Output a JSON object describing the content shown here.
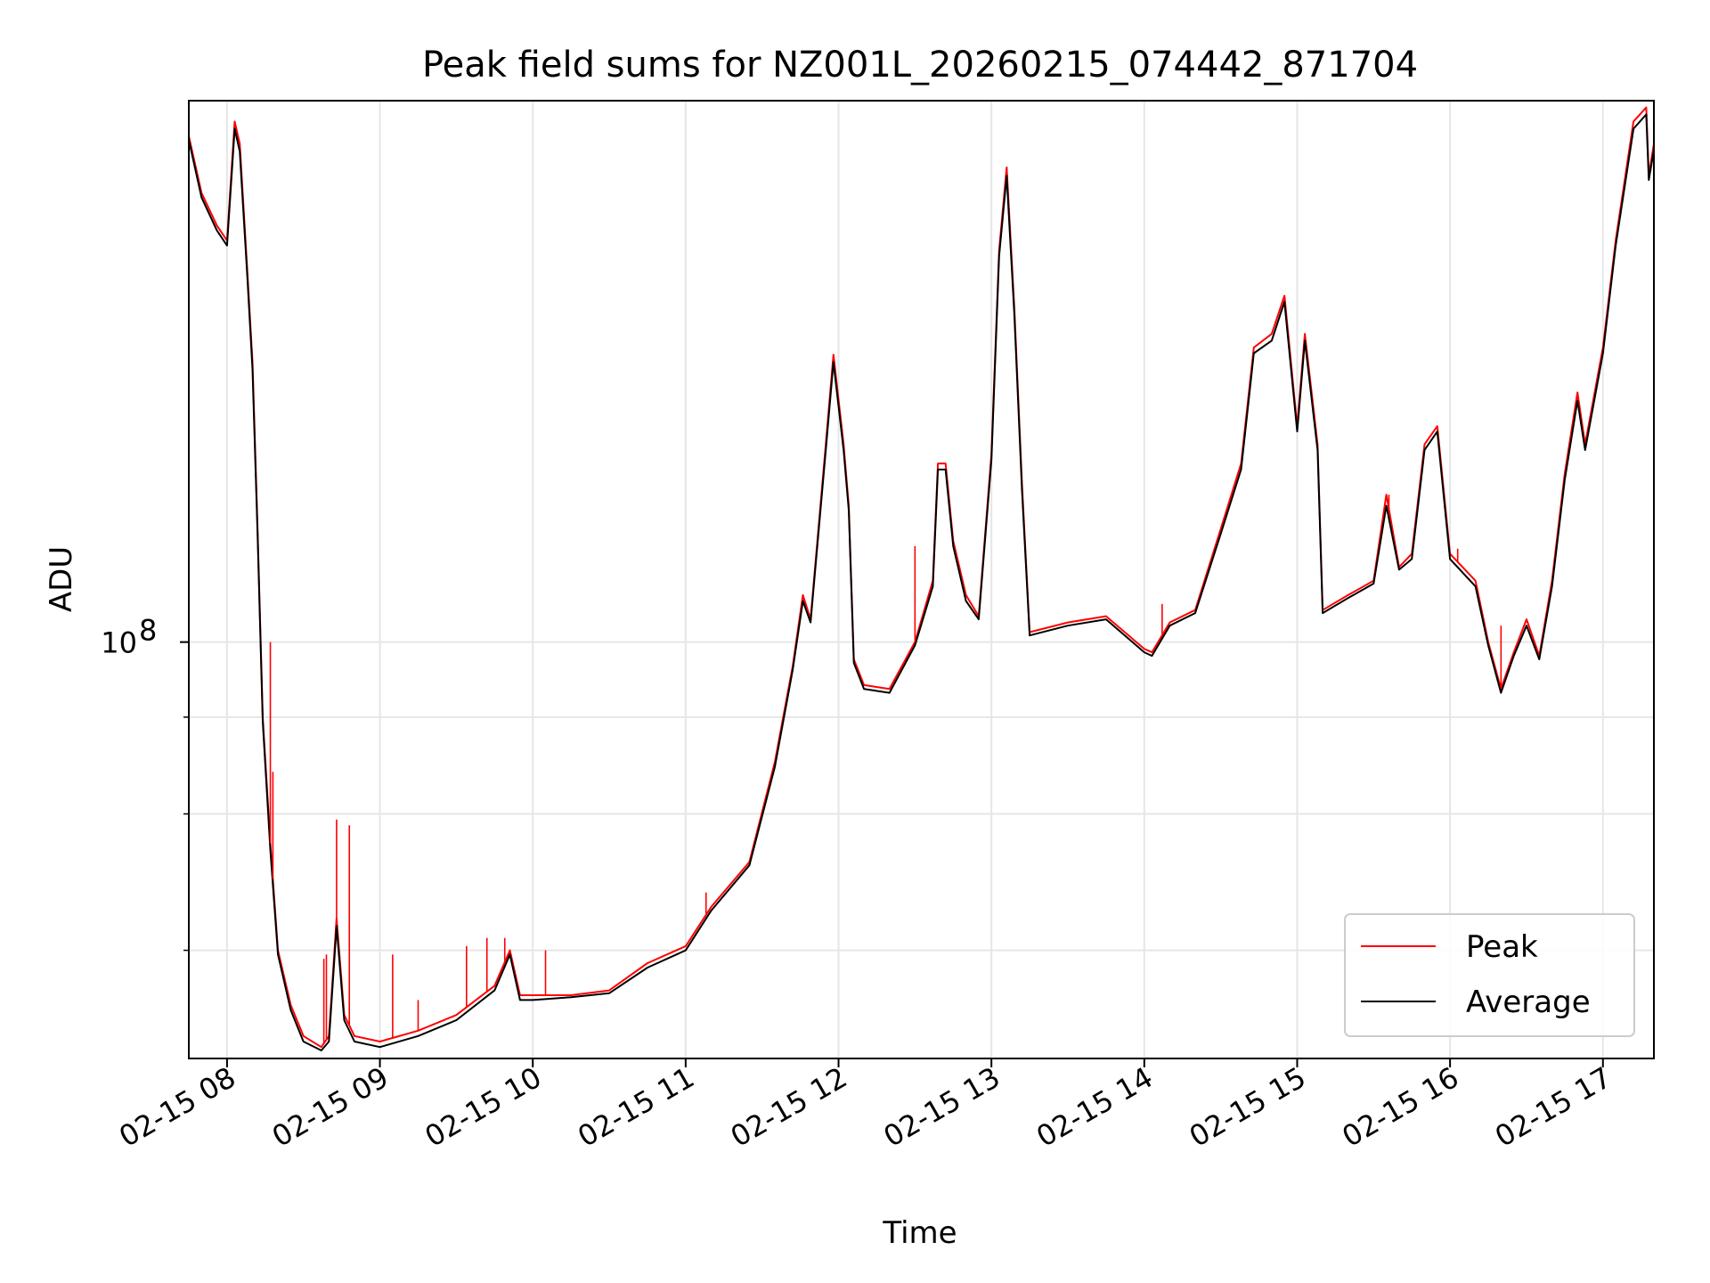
{
  "chart_data": {
    "type": "line",
    "title": "Peak field sums for NZ001L_20260215_074442_871704",
    "xlabel": "Time",
    "ylabel": "ADU",
    "y_scale": "log",
    "grid": true,
    "legend_position": "lower-right",
    "xlim": [
      "2026-02-15 07:45",
      "2026-02-15 17:20"
    ],
    "ylim": [
      29000000,
      500000000
    ],
    "x_ticks": [
      "02-15 08",
      "02-15 09",
      "02-15 10",
      "02-15 11",
      "02-15 12",
      "02-15 13",
      "02-15 14",
      "02-15 15",
      "02-15 16",
      "02-15 17"
    ],
    "y_tick_labels": [
      {
        "value": 100000000,
        "base": "10",
        "exp": "8"
      }
    ],
    "y_minor_ticks": [
      40000000,
      60000000,
      80000000
    ],
    "series": [
      {
        "name": "Peak",
        "color": "#ff0000",
        "points": [
          [
            "2026-02-15 07:45",
            450000000
          ],
          [
            "2026-02-15 07:50",
            380000000
          ],
          [
            "2026-02-15 07:56",
            345000000
          ],
          [
            "2026-02-15 08:00",
            330000000
          ],
          [
            "2026-02-15 08:03",
            470000000
          ],
          [
            "2026-02-15 08:05",
            440000000
          ],
          [
            "2026-02-15 08:08",
            300000000
          ],
          [
            "2026-02-15 08:10",
            230000000
          ],
          [
            "2026-02-15 08:12",
            140000000
          ],
          [
            "2026-02-15 08:14",
            80000000
          ],
          [
            "2026-02-15 08:17",
            55000000
          ],
          [
            "2026-02-15 08:20",
            40000000
          ],
          [
            "2026-02-15 08:25",
            34000000
          ],
          [
            "2026-02-15 08:30",
            31000000
          ],
          [
            "2026-02-15 08:37",
            30000000
          ],
          [
            "2026-02-15 08:40",
            31000000
          ],
          [
            "2026-02-15 08:43",
            44000000
          ],
          [
            "2026-02-15 08:46",
            33000000
          ],
          [
            "2026-02-15 08:50",
            31000000
          ],
          [
            "2026-02-15 09:00",
            30500000
          ],
          [
            "2026-02-15 09:15",
            31500000
          ],
          [
            "2026-02-15 09:30",
            33000000
          ],
          [
            "2026-02-15 09:45",
            36000000
          ],
          [
            "2026-02-15 09:51",
            40000000
          ],
          [
            "2026-02-15 09:55",
            35000000
          ],
          [
            "2026-02-15 10:00",
            35000000
          ],
          [
            "2026-02-15 10:15",
            35000000
          ],
          [
            "2026-02-15 10:30",
            35500000
          ],
          [
            "2026-02-15 10:45",
            38500000
          ],
          [
            "2026-02-15 11:00",
            40500000
          ],
          [
            "2026-02-15 11:10",
            45500000
          ],
          [
            "2026-02-15 11:25",
            52000000
          ],
          [
            "2026-02-15 11:35",
            70000000
          ],
          [
            "2026-02-15 11:42",
            93000000
          ],
          [
            "2026-02-15 11:46",
            115000000
          ],
          [
            "2026-02-15 11:49",
            107000000
          ],
          [
            "2026-02-15 11:55",
            180000000
          ],
          [
            "2026-02-15 11:58",
            235000000
          ],
          [
            "2026-02-15 12:02",
            180000000
          ],
          [
            "2026-02-15 12:04",
            150000000
          ],
          [
            "2026-02-15 12:06",
            95000000
          ],
          [
            "2026-02-15 12:10",
            88000000
          ],
          [
            "2026-02-15 12:20",
            87000000
          ],
          [
            "2026-02-15 12:30",
            100000000
          ],
          [
            "2026-02-15 12:37",
            120000000
          ],
          [
            "2026-02-15 12:39",
            170000000
          ],
          [
            "2026-02-15 12:42",
            170000000
          ],
          [
            "2026-02-15 12:45",
            135000000
          ],
          [
            "2026-02-15 12:50",
            115000000
          ],
          [
            "2026-02-15 12:55",
            108000000
          ],
          [
            "2026-02-15 13:00",
            175000000
          ],
          [
            "2026-02-15 13:03",
            320000000
          ],
          [
            "2026-02-15 13:06",
            410000000
          ],
          [
            "2026-02-15 13:09",
            270000000
          ],
          [
            "2026-02-15 13:12",
            160000000
          ],
          [
            "2026-02-15 13:15",
            103000000
          ],
          [
            "2026-02-15 13:30",
            106000000
          ],
          [
            "2026-02-15 13:45",
            108000000
          ],
          [
            "2026-02-15 14:00",
            98000000
          ],
          [
            "2026-02-15 14:03",
            97000000
          ],
          [
            "2026-02-15 14:10",
            106000000
          ],
          [
            "2026-02-15 14:20",
            110000000
          ],
          [
            "2026-02-15 14:30",
            140000000
          ],
          [
            "2026-02-15 14:38",
            170000000
          ],
          [
            "2026-02-15 14:43",
            240000000
          ],
          [
            "2026-02-15 14:50",
            250000000
          ],
          [
            "2026-02-15 14:55",
            280000000
          ],
          [
            "2026-02-15 15:00",
            190000000
          ],
          [
            "2026-02-15 15:03",
            250000000
          ],
          [
            "2026-02-15 15:08",
            180000000
          ],
          [
            "2026-02-15 15:10",
            110000000
          ],
          [
            "2026-02-15 15:20",
            115000000
          ],
          [
            "2026-02-15 15:30",
            120000000
          ],
          [
            "2026-02-15 15:35",
            155000000
          ],
          [
            "2026-02-15 15:40",
            125000000
          ],
          [
            "2026-02-15 15:45",
            130000000
          ],
          [
            "2026-02-15 15:50",
            180000000
          ],
          [
            "2026-02-15 15:55",
            190000000
          ],
          [
            "2026-02-15 16:00",
            130000000
          ],
          [
            "2026-02-15 16:10",
            120000000
          ],
          [
            "2026-02-15 16:15",
            100000000
          ],
          [
            "2026-02-15 16:20",
            87000000
          ],
          [
            "2026-02-15 16:25",
            97000000
          ],
          [
            "2026-02-15 16:30",
            107000000
          ],
          [
            "2026-02-15 16:35",
            96000000
          ],
          [
            "2026-02-15 16:40",
            120000000
          ],
          [
            "2026-02-15 16:45",
            165000000
          ],
          [
            "2026-02-15 16:50",
            210000000
          ],
          [
            "2026-02-15 16:53",
            180000000
          ],
          [
            "2026-02-15 17:00",
            240000000
          ],
          [
            "2026-02-15 17:05",
            330000000
          ],
          [
            "2026-02-15 17:12",
            470000000
          ],
          [
            "2026-02-15 17:17",
            490000000
          ],
          [
            "2026-02-15 17:18",
            400000000
          ],
          [
            "2026-02-15 17:20",
            440000000
          ]
        ]
      },
      {
        "name": "Average",
        "color": "#000000",
        "points": [
          [
            "2026-02-15 07:45",
            445000000
          ],
          [
            "2026-02-15 07:50",
            375000000
          ],
          [
            "2026-02-15 07:56",
            340000000
          ],
          [
            "2026-02-15 08:00",
            325000000
          ],
          [
            "2026-02-15 08:03",
            460000000
          ],
          [
            "2026-02-15 08:05",
            430000000
          ],
          [
            "2026-02-15 08:08",
            295000000
          ],
          [
            "2026-02-15 08:10",
            225000000
          ],
          [
            "2026-02-15 08:12",
            138000000
          ],
          [
            "2026-02-15 08:14",
            79000000
          ],
          [
            "2026-02-15 08:17",
            54000000
          ],
          [
            "2026-02-15 08:20",
            39500000
          ],
          [
            "2026-02-15 08:25",
            33500000
          ],
          [
            "2026-02-15 08:30",
            30500000
          ],
          [
            "2026-02-15 08:37",
            29700000
          ],
          [
            "2026-02-15 08:40",
            30500000
          ],
          [
            "2026-02-15 08:43",
            43000000
          ],
          [
            "2026-02-15 08:46",
            32500000
          ],
          [
            "2026-02-15 08:50",
            30500000
          ],
          [
            "2026-02-15 09:00",
            30000000
          ],
          [
            "2026-02-15 09:15",
            31000000
          ],
          [
            "2026-02-15 09:30",
            32500000
          ],
          [
            "2026-02-15 09:45",
            35500000
          ],
          [
            "2026-02-15 09:51",
            39500000
          ],
          [
            "2026-02-15 09:55",
            34500000
          ],
          [
            "2026-02-15 10:00",
            34500000
          ],
          [
            "2026-02-15 10:15",
            34800000
          ],
          [
            "2026-02-15 10:30",
            35200000
          ],
          [
            "2026-02-15 10:45",
            38000000
          ],
          [
            "2026-02-15 11:00",
            40000000
          ],
          [
            "2026-02-15 11:10",
            45000000
          ],
          [
            "2026-02-15 11:25",
            51500000
          ],
          [
            "2026-02-15 11:35",
            69000000
          ],
          [
            "2026-02-15 11:42",
            92000000
          ],
          [
            "2026-02-15 11:46",
            113000000
          ],
          [
            "2026-02-15 11:49",
            106000000
          ],
          [
            "2026-02-15 11:55",
            177000000
          ],
          [
            "2026-02-15 11:58",
            230000000
          ],
          [
            "2026-02-15 12:02",
            177000000
          ],
          [
            "2026-02-15 12:04",
            148000000
          ],
          [
            "2026-02-15 12:06",
            94000000
          ],
          [
            "2026-02-15 12:10",
            87000000
          ],
          [
            "2026-02-15 12:20",
            86000000
          ],
          [
            "2026-02-15 12:30",
            99000000
          ],
          [
            "2026-02-15 12:37",
            118000000
          ],
          [
            "2026-02-15 12:39",
            167000000
          ],
          [
            "2026-02-15 12:42",
            167000000
          ],
          [
            "2026-02-15 12:45",
            133000000
          ],
          [
            "2026-02-15 12:50",
            113000000
          ],
          [
            "2026-02-15 12:55",
            107000000
          ],
          [
            "2026-02-15 13:00",
            172000000
          ],
          [
            "2026-02-15 13:03",
            315000000
          ],
          [
            "2026-02-15 13:06",
            400000000
          ],
          [
            "2026-02-15 13:09",
            265000000
          ],
          [
            "2026-02-15 13:12",
            157000000
          ],
          [
            "2026-02-15 13:15",
            102000000
          ],
          [
            "2026-02-15 13:30",
            105000000
          ],
          [
            "2026-02-15 13:45",
            107000000
          ],
          [
            "2026-02-15 14:00",
            97000000
          ],
          [
            "2026-02-15 14:03",
            96000000
          ],
          [
            "2026-02-15 14:10",
            105000000
          ],
          [
            "2026-02-15 14:20",
            109000000
          ],
          [
            "2026-02-15 14:30",
            138000000
          ],
          [
            "2026-02-15 14:38",
            167000000
          ],
          [
            "2026-02-15 14:43",
            236000000
          ],
          [
            "2026-02-15 14:50",
            245000000
          ],
          [
            "2026-02-15 14:55",
            275000000
          ],
          [
            "2026-02-15 15:00",
            187000000
          ],
          [
            "2026-02-15 15:03",
            245000000
          ],
          [
            "2026-02-15 15:08",
            177000000
          ],
          [
            "2026-02-15 15:10",
            109000000
          ],
          [
            "2026-02-15 15:20",
            114000000
          ],
          [
            "2026-02-15 15:30",
            119000000
          ],
          [
            "2026-02-15 15:35",
            150000000
          ],
          [
            "2026-02-15 15:40",
            124000000
          ],
          [
            "2026-02-15 15:45",
            128000000
          ],
          [
            "2026-02-15 15:50",
            177000000
          ],
          [
            "2026-02-15 15:55",
            187000000
          ],
          [
            "2026-02-15 16:00",
            128000000
          ],
          [
            "2026-02-15 16:10",
            118000000
          ],
          [
            "2026-02-15 16:15",
            99000000
          ],
          [
            "2026-02-15 16:20",
            86000000
          ],
          [
            "2026-02-15 16:25",
            96000000
          ],
          [
            "2026-02-15 16:30",
            105000000
          ],
          [
            "2026-02-15 16:35",
            95000000
          ],
          [
            "2026-02-15 16:40",
            118000000
          ],
          [
            "2026-02-15 16:45",
            162000000
          ],
          [
            "2026-02-15 16:50",
            205000000
          ],
          [
            "2026-02-15 16:53",
            177000000
          ],
          [
            "2026-02-15 17:00",
            236000000
          ],
          [
            "2026-02-15 17:05",
            325000000
          ],
          [
            "2026-02-15 17:12",
            460000000
          ],
          [
            "2026-02-15 17:17",
            480000000
          ],
          [
            "2026-02-15 17:18",
            395000000
          ],
          [
            "2026-02-15 17:20",
            432000000
          ]
        ]
      }
    ],
    "spikes": {
      "series": "Peak",
      "color": "#ff0000",
      "points": [
        [
          "2026-02-15 08:17",
          100000000
        ],
        [
          "2026-02-15 08:18",
          68000000
        ],
        [
          "2026-02-15 08:38",
          39000000
        ],
        [
          "2026-02-15 08:39",
          39500000
        ],
        [
          "2026-02-15 08:43",
          59000000
        ],
        [
          "2026-02-15 08:48",
          58000000
        ],
        [
          "2026-02-15 09:05",
          39500000
        ],
        [
          "2026-02-15 09:15",
          34500000
        ],
        [
          "2026-02-15 09:34",
          40500000
        ],
        [
          "2026-02-15 09:42",
          41500000
        ],
        [
          "2026-02-15 09:49",
          41500000
        ],
        [
          "2026-02-15 10:05",
          40000000
        ],
        [
          "2026-02-15 11:08",
          47500000
        ],
        [
          "2026-02-15 12:30",
          133000000
        ],
        [
          "2026-02-15 14:07",
          112000000
        ],
        [
          "2026-02-15 15:36",
          155000000
        ],
        [
          "2026-02-15 16:03",
          132000000
        ],
        [
          "2026-02-15 16:20",
          105000000
        ]
      ]
    }
  }
}
